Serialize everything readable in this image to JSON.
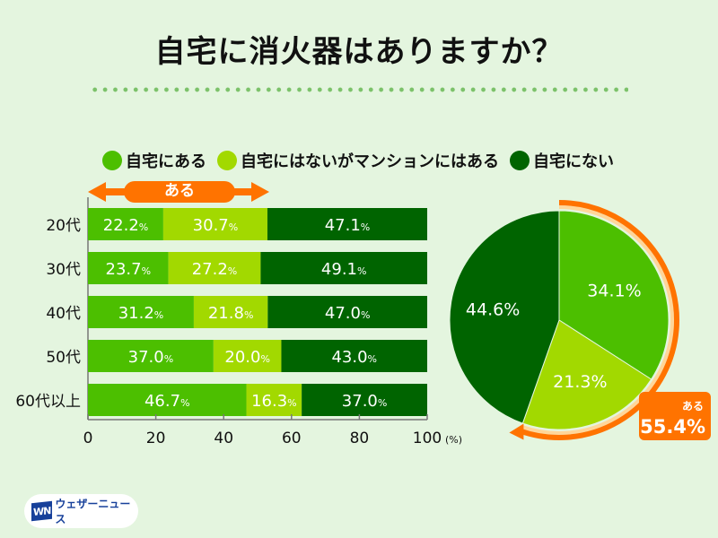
{
  "title": "自宅に消火器はありますか？",
  "colors": {
    "has_home": "#4cbf00",
    "apartment_only": "#a2d900",
    "none": "#006400",
    "accent": "#ff7300",
    "accent_light": "#ffd699"
  },
  "legend": [
    {
      "label": "自宅にある",
      "color": "#4cbf00"
    },
    {
      "label": "自宅にはないがマンションにはある",
      "color": "#a2d900"
    },
    {
      "label": "自宅にない",
      "color": "#006400"
    }
  ],
  "aru_bracket_label": "ある",
  "chart_data": [
    {
      "type": "bar",
      "orientation": "horizontal-stacked",
      "categories": [
        "20代",
        "30代",
        "40代",
        "50代",
        "60代以上"
      ],
      "series": [
        {
          "name": "自宅にある",
          "values": [
            22.2,
            23.7,
            31.2,
            37.0,
            46.7
          ]
        },
        {
          "name": "自宅にはないがマンションにはある",
          "values": [
            30.7,
            27.2,
            21.8,
            20.0,
            16.3
          ]
        },
        {
          "name": "自宅にない",
          "values": [
            47.1,
            49.1,
            47.0,
            43.0,
            37.0
          ]
        }
      ],
      "xlim": [
        0,
        100
      ],
      "xticks": [
        "0",
        "20",
        "40",
        "60",
        "80",
        "100"
      ],
      "xunit": "(%)",
      "value_suffix": "%",
      "legend": "top"
    },
    {
      "type": "pie",
      "slices": [
        {
          "label": "自宅にある",
          "value": 34.1,
          "text": "34.1%"
        },
        {
          "label": "自宅にはないがマンションにはある",
          "value": 21.3,
          "text": "21.3%"
        },
        {
          "label": "自宅にない",
          "value": 44.6,
          "text": "44.6%"
        }
      ],
      "annotation": {
        "label": "ある",
        "value": 55.4,
        "text": "55.4%"
      }
    }
  ],
  "logo": {
    "mark": "WN",
    "text": "ウェザーニュース"
  }
}
